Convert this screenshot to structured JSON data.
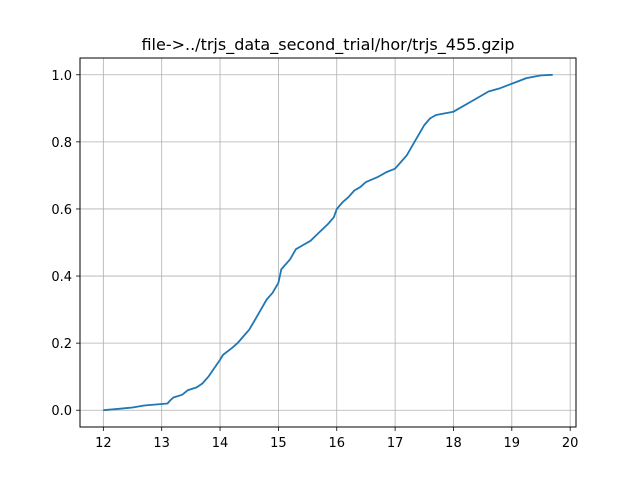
{
  "chart_data": {
    "type": "line",
    "title": "file->../trjs_data_second_trial/hor/trjs_455.gzip",
    "xlabel": "",
    "ylabel": "",
    "xlim": [
      11.6,
      20.1
    ],
    "ylim": [
      -0.05,
      1.05
    ],
    "xticks": [
      12,
      13,
      14,
      15,
      16,
      17,
      18,
      19,
      20
    ],
    "xtick_labels": [
      "12",
      "13",
      "14",
      "15",
      "16",
      "17",
      "18",
      "19",
      "20"
    ],
    "yticks": [
      0.0,
      0.2,
      0.4,
      0.6,
      0.8,
      1.0
    ],
    "ytick_labels": [
      "0.0",
      "0.2",
      "0.4",
      "0.6",
      "0.8",
      "1.0"
    ],
    "grid": true,
    "series": [
      {
        "color": "#1f77b4",
        "x": [
          12.0,
          12.2,
          12.5,
          12.7,
          12.9,
          13.1,
          13.15,
          13.2,
          13.35,
          13.45,
          13.6,
          13.7,
          13.8,
          13.9,
          14.0,
          14.05,
          14.2,
          14.3,
          14.4,
          14.5,
          14.6,
          14.7,
          14.8,
          14.9,
          15.0,
          15.05,
          15.1,
          15.2,
          15.3,
          15.4,
          15.55,
          15.7,
          15.85,
          15.95,
          16.0,
          16.1,
          16.2,
          16.3,
          16.4,
          16.5,
          16.7,
          16.85,
          17.0,
          17.1,
          17.2,
          17.3,
          17.4,
          17.5,
          17.6,
          17.7,
          17.85,
          18.0,
          18.1,
          18.3,
          18.45,
          18.6,
          18.8,
          18.95,
          19.1,
          19.25,
          19.5,
          19.7
        ],
        "y": [
          0.0,
          0.003,
          0.008,
          0.014,
          0.017,
          0.02,
          0.03,
          0.038,
          0.046,
          0.06,
          0.068,
          0.08,
          0.1,
          0.125,
          0.15,
          0.165,
          0.185,
          0.2,
          0.22,
          0.24,
          0.27,
          0.3,
          0.33,
          0.35,
          0.38,
          0.42,
          0.43,
          0.45,
          0.48,
          0.49,
          0.505,
          0.53,
          0.555,
          0.575,
          0.6,
          0.62,
          0.635,
          0.655,
          0.665,
          0.68,
          0.695,
          0.71,
          0.72,
          0.74,
          0.76,
          0.79,
          0.82,
          0.85,
          0.87,
          0.88,
          0.885,
          0.89,
          0.9,
          0.92,
          0.935,
          0.95,
          0.96,
          0.97,
          0.98,
          0.99,
          0.998,
          1.0
        ]
      }
    ]
  }
}
